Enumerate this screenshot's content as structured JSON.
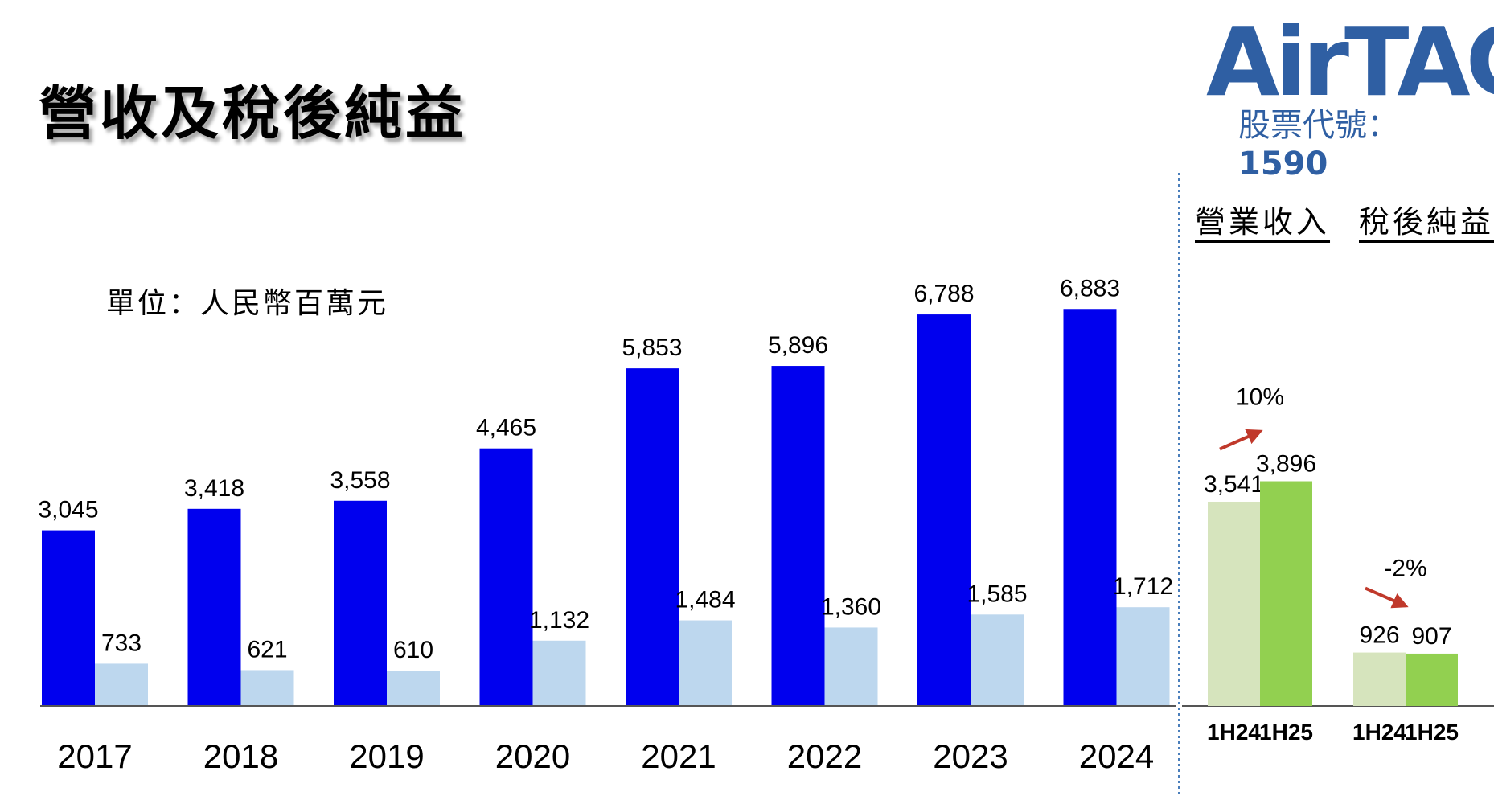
{
  "title": "營收及稅後純益",
  "logo": {
    "text": "AirTAC",
    "stock_label": "股票代號：",
    "stock_code": "1590"
  },
  "unit": "單位：人民幣百萬元",
  "right_headers": {
    "revenue": "營業收入",
    "net_income": "稅後純益"
  },
  "colors": {
    "revenue_annual": "#0000ee",
    "net_income_annual": "#bdd7ee",
    "prior_half": "#d6e4bd",
    "current_half": "#92d050",
    "arrow": "#c0392b",
    "divider": "#4a7ebb",
    "logo": "#2f5fa3"
  },
  "chart_data": [
    {
      "type": "bar",
      "categories": [
        "2017",
        "2018",
        "2019",
        "2020",
        "2021",
        "2022",
        "2023",
        "2024"
      ],
      "series": [
        {
          "values": [
            3045,
            3418,
            3558,
            4465,
            5853,
            5896,
            6788,
            6883
          ],
          "labels": [
            "3,045",
            "3,418",
            "3,558",
            "4,465",
            "5,853",
            "5,896",
            "6,788",
            "6,883"
          ]
        },
        {
          "values": [
            733,
            621,
            610,
            1132,
            1484,
            1360,
            1585,
            1712
          ],
          "labels": [
            "733",
            "621",
            "610",
            "1,132",
            "1,484",
            "1,360",
            "1,585",
            "1,712"
          ]
        }
      ],
      "ylim": [
        0,
        7500
      ],
      "grid": false
    },
    {
      "type": "bar",
      "groups": [
        {
          "name": "營業收入",
          "categories": [
            "1H24",
            "1H25"
          ],
          "values": [
            3541,
            3896
          ],
          "labels": [
            "3,541",
            "3,896"
          ],
          "change": "10%",
          "direction": "up"
        },
        {
          "name": "稅後純益",
          "categories": [
            "1H24",
            "1H25"
          ],
          "values": [
            926,
            907
          ],
          "labels": [
            "926",
            "907"
          ],
          "change": "-2%",
          "direction": "down"
        }
      ],
      "ylim": [
        0,
        7500
      ],
      "grid": false
    }
  ]
}
